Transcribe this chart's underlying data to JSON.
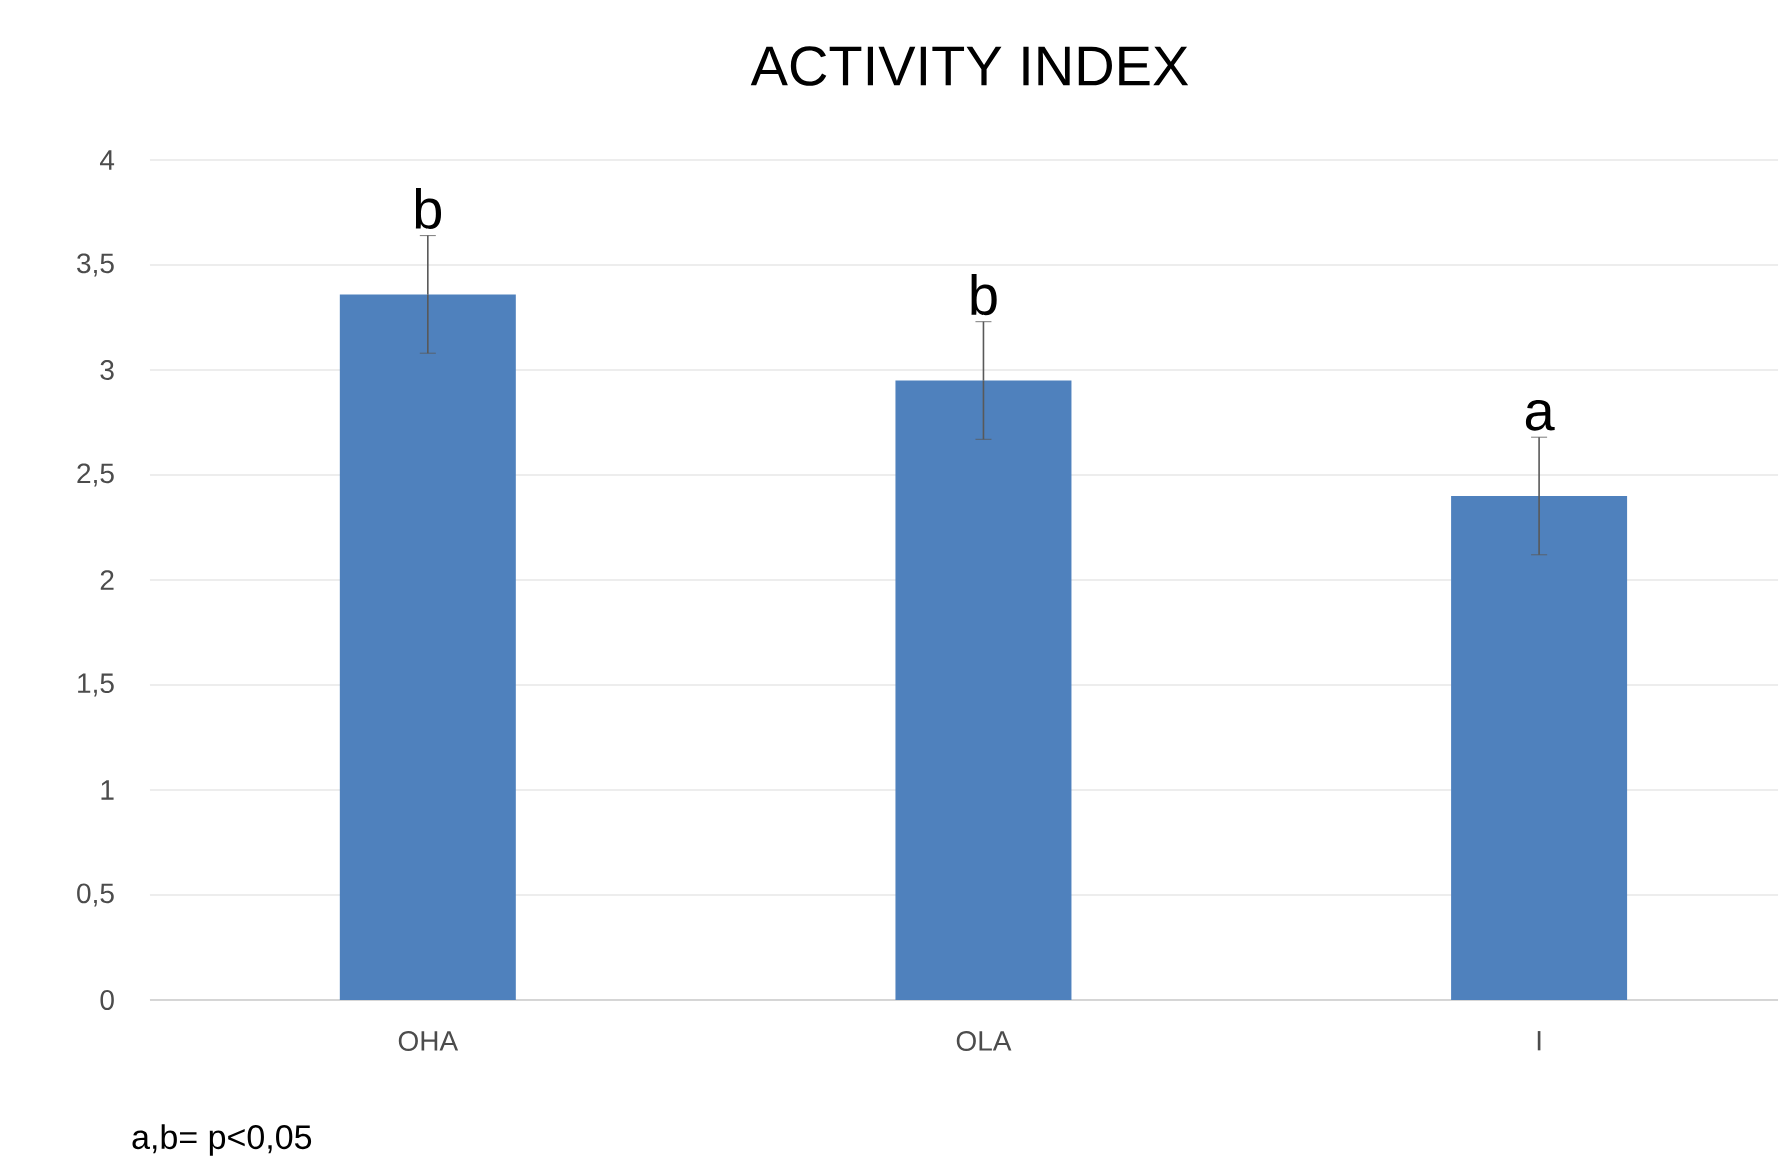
{
  "chart_data": {
    "type": "bar",
    "title": "ACTIVITY INDEX",
    "categories": [
      "OHA",
      "OLA",
      "I"
    ],
    "values": [
      3.36,
      2.95,
      2.4
    ],
    "errors": [
      0.28,
      0.28,
      0.28
    ],
    "color": "#4f81bd",
    "ylim": [
      0,
      4
    ],
    "yticks": [
      0,
      {
        "value": 0.5,
        "label": "0,5"
      },
      1,
      {
        "value": 1.5,
        "label": "1,5"
      },
      2,
      {
        "value": 2.5,
        "label": "2,5"
      },
      3,
      {
        "value": 3.5,
        "label": "3,5"
      },
      4
    ],
    "grid": "y",
    "annotations": [
      "b",
      "b",
      "a",
      "a,b= p<0,05"
    ]
  }
}
